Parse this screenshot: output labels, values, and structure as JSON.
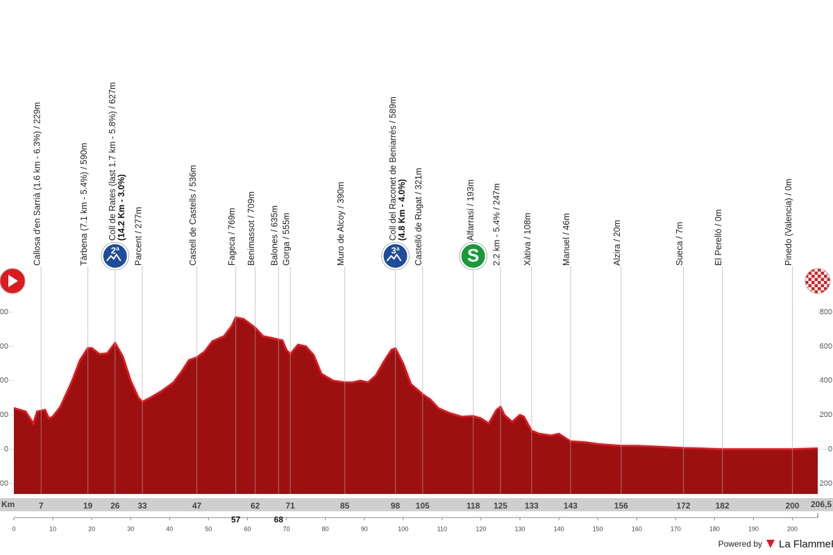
{
  "chart_data": {
    "type": "profile",
    "x_axis_label": "Km",
    "xlim": [
      0,
      206.5
    ],
    "xticks": [
      0,
      10,
      20,
      30,
      40,
      50,
      60,
      70,
      80,
      90,
      100,
      110,
      120,
      130,
      140,
      150,
      160,
      170,
      180,
      190,
      200
    ],
    "ylim": [
      -200,
      800
    ],
    "yticks": [
      -200,
      0,
      200,
      400,
      600,
      800
    ],
    "color": "#9c1010",
    "edge_color": "#e0191f",
    "profile": {
      "x": [
        0,
        3,
        5,
        6,
        8,
        9,
        10,
        12,
        15,
        17,
        19,
        20,
        22,
        24,
        26,
        28,
        30,
        32,
        33,
        35,
        38,
        41,
        43,
        45,
        47,
        49,
        51,
        54,
        56,
        57,
        59,
        62,
        64,
        68,
        69,
        70,
        71,
        73,
        75,
        77,
        79,
        82,
        85,
        87,
        89,
        91,
        93,
        95,
        97,
        98,
        100,
        102,
        105,
        107,
        109,
        112,
        115,
        118,
        120,
        122,
        124,
        125,
        126,
        128,
        130,
        131,
        133,
        135,
        138,
        140,
        143,
        147,
        150,
        156,
        160,
        165,
        172,
        176,
        182,
        190,
        195,
        200,
        204,
        206.5
      ],
      "values": [
        240,
        220,
        150,
        220,
        230,
        180,
        190,
        250,
        400,
        520,
        590,
        590,
        555,
        560,
        620,
        540,
        400,
        300,
        277,
        300,
        340,
        390,
        450,
        520,
        536,
        570,
        630,
        660,
        720,
        769,
        760,
        709,
        660,
        640,
        635,
        580,
        555,
        610,
        600,
        550,
        440,
        400,
        390,
        390,
        400,
        390,
        430,
        510,
        580,
        589,
        500,
        380,
        321,
        290,
        240,
        210,
        190,
        193,
        180,
        150,
        230,
        247,
        200,
        160,
        200,
        190,
        108,
        90,
        80,
        90,
        46,
        40,
        30,
        20,
        20,
        15,
        7,
        5,
        0,
        0,
        0,
        0,
        3,
        5
      ]
    },
    "start_icon": true,
    "finish_icon": true,
    "waypoints": [
      {
        "km": 7,
        "label": "Callosa d'en Sarrià (1.6 km - 6.3%) / 229m"
      },
      {
        "km": 19,
        "label": "Tàrbena (7.1 km - 5.4%) / 590m"
      },
      {
        "km": 26,
        "label": "Coll de Rates (last 1.7 km - 5.8%) / 627m",
        "detail": "(14.2 Km - 3.0%)",
        "badge": "2ª",
        "badge_color": "#1d4c9a"
      },
      {
        "km": 33,
        "label": "Parcent / 277m"
      },
      {
        "km": 47,
        "label": "Castell de Castells / 536m"
      },
      {
        "km": 57,
        "label": "Fageca / 769m",
        "below": true
      },
      {
        "km": 62,
        "label": "Benimassot / 709m"
      },
      {
        "km": 68,
        "label": "Balones / 635m",
        "below": true
      },
      {
        "km": 71,
        "label": "Gorga / 555m"
      },
      {
        "km": 85,
        "label": "Muro de Alcoy / 390m"
      },
      {
        "km": 98,
        "label": "Coll del Raconet de Beniarrés / 589m",
        "detail": "(4.8 Km - 4.0%)",
        "badge": "3ª",
        "badge_color": "#1d4c9a"
      },
      {
        "km": 105,
        "label": "Castelló de Rugat / 321m"
      },
      {
        "km": 118,
        "label": "Alfarrasí / 193m",
        "badge": "S",
        "badge_color": "#179a3a"
      },
      {
        "km": 125,
        "label": "2.2 km - 5.4% / 247m"
      },
      {
        "km": 133,
        "label": "Xàtiva / 108m"
      },
      {
        "km": 143,
        "label": "Manuel / 46m"
      },
      {
        "km": 156,
        "label": "Alzira / 20m"
      },
      {
        "km": 172,
        "label": "Sueca / 7m"
      },
      {
        "km": 182,
        "label": "El Perelló / 0m"
      },
      {
        "km": 200,
        "label": "Pinedo (Valencia) / 0m"
      }
    ],
    "total_km": {
      "value": 206.5,
      "label": "206,5"
    },
    "footer": {
      "powered_by": "Powered by",
      "brand": "La FlammeR"
    }
  }
}
